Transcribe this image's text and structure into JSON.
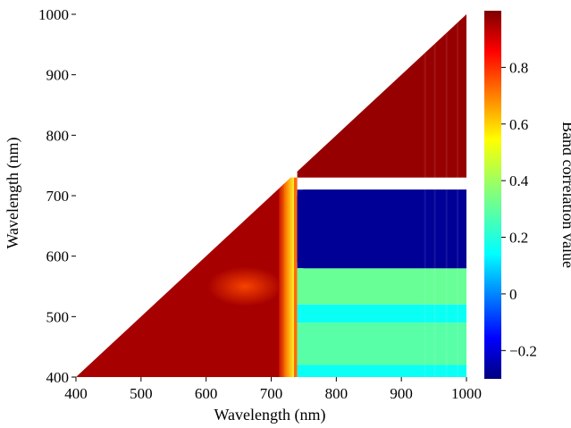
{
  "chart_data": {
    "type": "heatmap",
    "shape": "lower-triangle",
    "title": "",
    "xlabel": "Wavelength (nm)",
    "ylabel": "Wavelength (nm)",
    "xlim": [
      400,
      1000
    ],
    "ylim": [
      400,
      1000
    ],
    "x_ticks": [
      "400",
      "500",
      "600",
      "700",
      "800",
      "900",
      "1000"
    ],
    "y_ticks": [
      "400",
      "500",
      "600",
      "700",
      "800",
      "900",
      "1000"
    ],
    "colorbar": {
      "label": "Band correlation value",
      "range": [
        -0.3,
        1.0
      ],
      "ticks": [
        "−0.2",
        "0",
        "0.2",
        "0.4",
        "0.6",
        "0.8"
      ],
      "colormap": "jet"
    },
    "regions": [
      {
        "x_range": [
          400,
          720
        ],
        "y_range": [
          400,
          1000
        ],
        "value": 0.95,
        "description": "red/dark red, high correlation"
      },
      {
        "x_range": [
          720,
          740
        ],
        "y_range": [
          400,
          730
        ],
        "value": 0.7,
        "description": "yellow transition band"
      },
      {
        "x_range": [
          740,
          1000
        ],
        "y_range": [
          730,
          1000
        ],
        "value": 0.97,
        "description": "dark red"
      },
      {
        "x_range": [
          740,
          1000
        ],
        "y_range": [
          580,
          710
        ],
        "value": -0.25,
        "description": "dark blue"
      },
      {
        "x_range": [
          740,
          1000
        ],
        "y_range": [
          520,
          580
        ],
        "value": 0.32,
        "description": "cyan-green"
      },
      {
        "x_range": [
          740,
          1000
        ],
        "y_range": [
          490,
          520
        ],
        "value": 0.2,
        "description": "light blue"
      },
      {
        "x_range": [
          740,
          1000
        ],
        "y_range": [
          420,
          490
        ],
        "value": 0.3,
        "description": "cyan"
      },
      {
        "x_range": [
          740,
          1000
        ],
        "y_range": [
          400,
          420
        ],
        "value": 0.2,
        "description": "light blue"
      }
    ]
  }
}
